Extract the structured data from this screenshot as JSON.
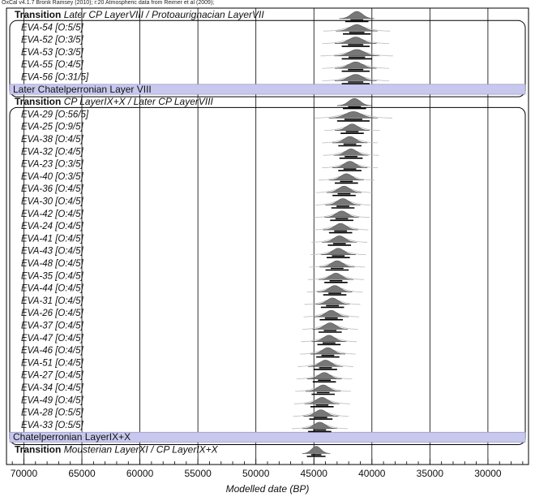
{
  "header": "OxCal v4.1.7 Bronk Ramsey (2010); r:20 Atmospheric data from Reimer et al (2009);",
  "chart_data": {
    "type": "bayesian-sequence-plot",
    "xlabel": "Modelled date (BP)",
    "xlim": [
      71500,
      26500
    ],
    "xticks": [
      70000,
      65000,
      60000,
      55000,
      50000,
      45000,
      40000,
      35000,
      30000
    ],
    "rows": [
      {
        "kind": "transition",
        "bold": "Transition",
        "label": "Later CP LayerVIII / Protoaurignacian LayerVII",
        "center": 41300,
        "sd": 500
      },
      {
        "kind": "sample",
        "label": "EVA-54 [O:5/5]",
        "center": 41300,
        "sd": 600
      },
      {
        "kind": "sample",
        "label": "EVA-52 [O:3/5]",
        "center": 41400,
        "sd": 600
      },
      {
        "kind": "sample",
        "label": "EVA-53 [O:3/5]",
        "center": 41300,
        "sd": 650
      },
      {
        "kind": "sample",
        "label": "EVA-55 [O:4/5]",
        "center": 41400,
        "sd": 600
      },
      {
        "kind": "sample",
        "label": "EVA-56 [O:31/5]",
        "center": 41400,
        "sd": 600
      },
      {
        "kind": "phase",
        "label": "Later Chatelperronian Layer VIII"
      },
      {
        "kind": "transition",
        "bold": "Transition",
        "label": "CP LayerIX+X / Later CP LayerVIII",
        "center": 41500,
        "sd": 500
      },
      {
        "kind": "sample",
        "label": "EVA-29 [O:56/5]",
        "center": 41600,
        "sd": 700
      },
      {
        "kind": "sample",
        "label": "EVA-25 [O:9/5]",
        "center": 41700,
        "sd": 500
      },
      {
        "kind": "sample",
        "label": "EVA-38 [O:4/5]",
        "center": 41900,
        "sd": 500
      },
      {
        "kind": "sample",
        "label": "EVA-32 [O:4/5]",
        "center": 41800,
        "sd": 500
      },
      {
        "kind": "sample",
        "label": "EVA-23 [O:3/5]",
        "center": 41900,
        "sd": 500
      },
      {
        "kind": "sample",
        "label": "EVA-40 [O:3/5]",
        "center": 42200,
        "sd": 500
      },
      {
        "kind": "sample",
        "label": "EVA-36 [O:4/5]",
        "center": 42400,
        "sd": 500
      },
      {
        "kind": "sample",
        "label": "EVA-30 [O:4/5]",
        "center": 42500,
        "sd": 500
      },
      {
        "kind": "sample",
        "label": "EVA-42 [O:4/5]",
        "center": 42600,
        "sd": 500
      },
      {
        "kind": "sample",
        "label": "EVA-24 [O:4/5]",
        "center": 42700,
        "sd": 500
      },
      {
        "kind": "sample",
        "label": "EVA-41 [O:4/5]",
        "center": 42800,
        "sd": 500
      },
      {
        "kind": "sample",
        "label": "EVA-43 [O:4/5]",
        "center": 42900,
        "sd": 500
      },
      {
        "kind": "sample",
        "label": "EVA-48 [O:4/5]",
        "center": 43000,
        "sd": 500
      },
      {
        "kind": "sample",
        "label": "EVA-35 [O:4/5]",
        "center": 43100,
        "sd": 500
      },
      {
        "kind": "sample",
        "label": "EVA-44 [O:4/5]",
        "center": 43200,
        "sd": 500
      },
      {
        "kind": "sample",
        "label": "EVA-31 [O:4/5]",
        "center": 43400,
        "sd": 500
      },
      {
        "kind": "sample",
        "label": "EVA-26 [O:4/5]",
        "center": 43500,
        "sd": 500
      },
      {
        "kind": "sample",
        "label": "EVA-37 [O:4/5]",
        "center": 43600,
        "sd": 500
      },
      {
        "kind": "sample",
        "label": "EVA-47 [O:4/5]",
        "center": 43700,
        "sd": 500
      },
      {
        "kind": "sample",
        "label": "EVA-46 [O:4/5]",
        "center": 43800,
        "sd": 500
      },
      {
        "kind": "sample",
        "label": "EVA-51 [O:4/5]",
        "center": 44000,
        "sd": 500
      },
      {
        "kind": "sample",
        "label": "EVA-27 [O:4/5]",
        "center": 44100,
        "sd": 500
      },
      {
        "kind": "sample",
        "label": "EVA-34 [O:4/5]",
        "center": 44200,
        "sd": 500
      },
      {
        "kind": "sample",
        "label": "EVA-49 [O:4/5]",
        "center": 44300,
        "sd": 500
      },
      {
        "kind": "sample",
        "label": "EVA-28 [O:5/5]",
        "center": 44400,
        "sd": 500
      },
      {
        "kind": "sample",
        "label": "EVA-33 [O:5/5]",
        "center": 44500,
        "sd": 500
      },
      {
        "kind": "phase",
        "label": "Chatelperronian LayerIX+X"
      },
      {
        "kind": "transition",
        "bold": "Transition",
        "label": "Mousterian LayerXI / CP LayerIX+X",
        "center": 44800,
        "sd": 400
      }
    ],
    "colors": {
      "phase_band": "#c8c8ee",
      "posterior": "#777777",
      "prior": "#bbbbbb",
      "axis": "#000000"
    }
  }
}
